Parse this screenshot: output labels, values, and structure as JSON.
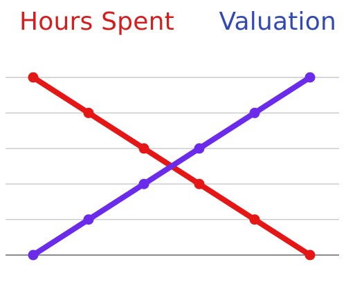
{
  "chart_data": {
    "type": "line",
    "x": [
      0,
      1,
      2,
      3,
      4,
      5
    ],
    "ylim": [
      0,
      5
    ],
    "grid": true,
    "legend_position": "top",
    "series": [
      {
        "name": "Hours Spent",
        "values": [
          5,
          4,
          3,
          2,
          1,
          0
        ],
        "color": "#e51616"
      },
      {
        "name": "Valuation",
        "values": [
          0,
          1,
          2,
          3,
          4,
          5
        ],
        "color": "#6a2bea"
      }
    ],
    "legend_text_colors": {
      "Hours Spent": "#d61d1d",
      "Valuation": "#3249b5"
    },
    "grid_color": "#c8c8c8",
    "axis_color": "#666666"
  }
}
